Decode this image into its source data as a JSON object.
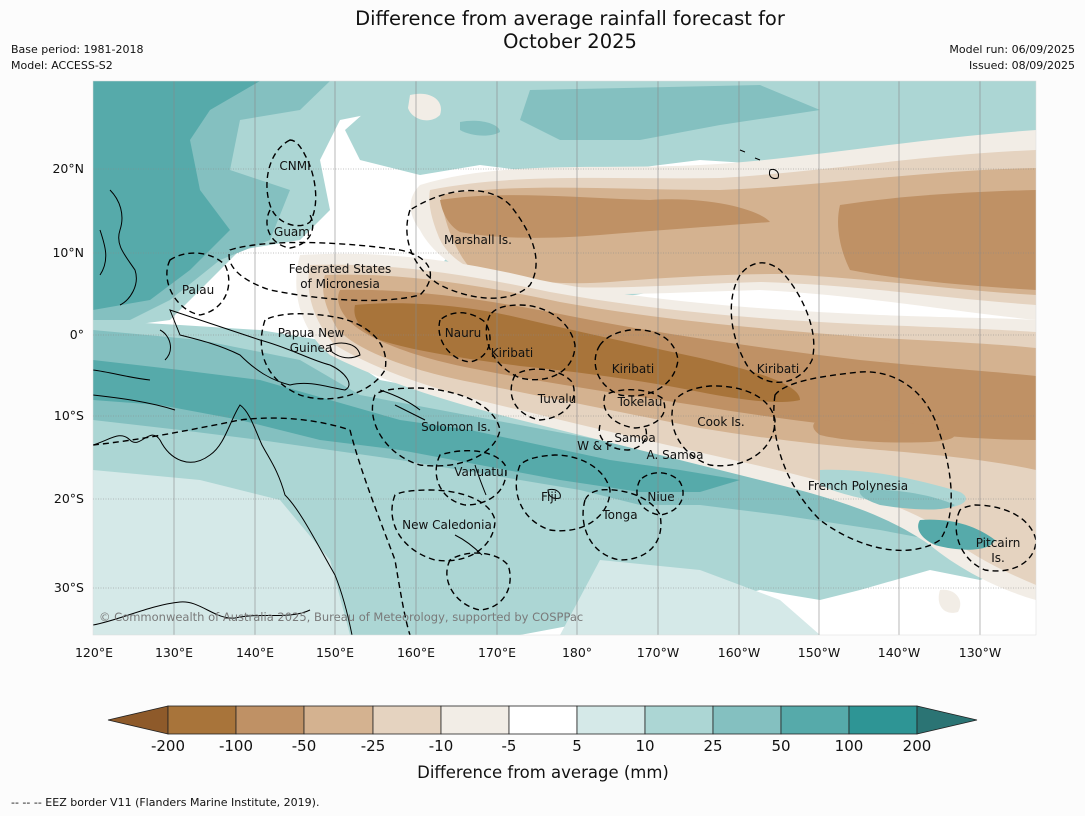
{
  "title_line1": "Difference from average rainfall forecast for",
  "title_line2": "October 2025",
  "meta_left": {
    "base_period": "Base period: 1981-2018",
    "model": "Model: ACCESS-S2"
  },
  "meta_right": {
    "model_run": "Model run: 06/09/2025",
    "issued": "Issued: 08/09/2025"
  },
  "lon_ticks": [
    "120°E",
    "130°E",
    "140°E",
    "150°E",
    "160°E",
    "170°E",
    "180°",
    "170°W",
    "160°W",
    "150°W",
    "140°W",
    "130°W"
  ],
  "lat_ticks": [
    "20°N",
    "10°N",
    "0°",
    "10°S",
    "20°S",
    "30°S"
  ],
  "region_labels": {
    "cnmi": "CNMI",
    "guam": "Guam",
    "marshall": "Marshall Is.",
    "fsm1": "Federated States",
    "fsm2": "of Micronesia",
    "palau": "Palau",
    "png1": "Papua New",
    "png2": "Guinea",
    "nauru": "Nauru",
    "kiribati_w": "Kiribati",
    "kiribati_c": "Kiribati",
    "kiribati_e": "Kiribati",
    "tuvalu": "Tuvalu",
    "tokelau": "Tokelau",
    "cook": "Cook Is.",
    "solomon": "Solomon Is.",
    "samoa": "Samoa",
    "wf": "W & F",
    "asamoa": "A. Samoa",
    "vanuatu": "Vanuatu",
    "fiji": "Fiji",
    "niue": "Niue",
    "tonga": "Tonga",
    "frpoly": "French Polynesia",
    "newcal": "New Caledonia",
    "pitcairn1": "Pitcairn",
    "pitcairn2": "Is."
  },
  "copyright": "© Commonwealth of Australia 2025, Bureau of Meteorology, supported by COSPPac",
  "colorbar": {
    "title": "Difference from average (mm)",
    "tick_labels": [
      "-200",
      "-100",
      "-50",
      "-25",
      "-10",
      "-5",
      "5",
      "10",
      "25",
      "50",
      "100",
      "200"
    ],
    "colors": {
      "lt_-200": "#8e5a2a",
      "-200_-100": "#a8743a",
      "-100_-50": "#bf9165",
      "-50_-25": "#d4b290",
      "-25_-10": "#e5d3c0",
      "-10_-5": "#f2ede6",
      "-5_5": "#ffffff",
      "5_10": "#d5e9e8",
      "10_25": "#acd6d4",
      "25_50": "#84c0c0",
      "50_100": "#56aaaa",
      "100_200": "#2e9595",
      "gt_200": "#2b7474"
    }
  },
  "footnote": "-- -- -- EEZ border V11 (Flanders Marine Institute, 2019)."
}
